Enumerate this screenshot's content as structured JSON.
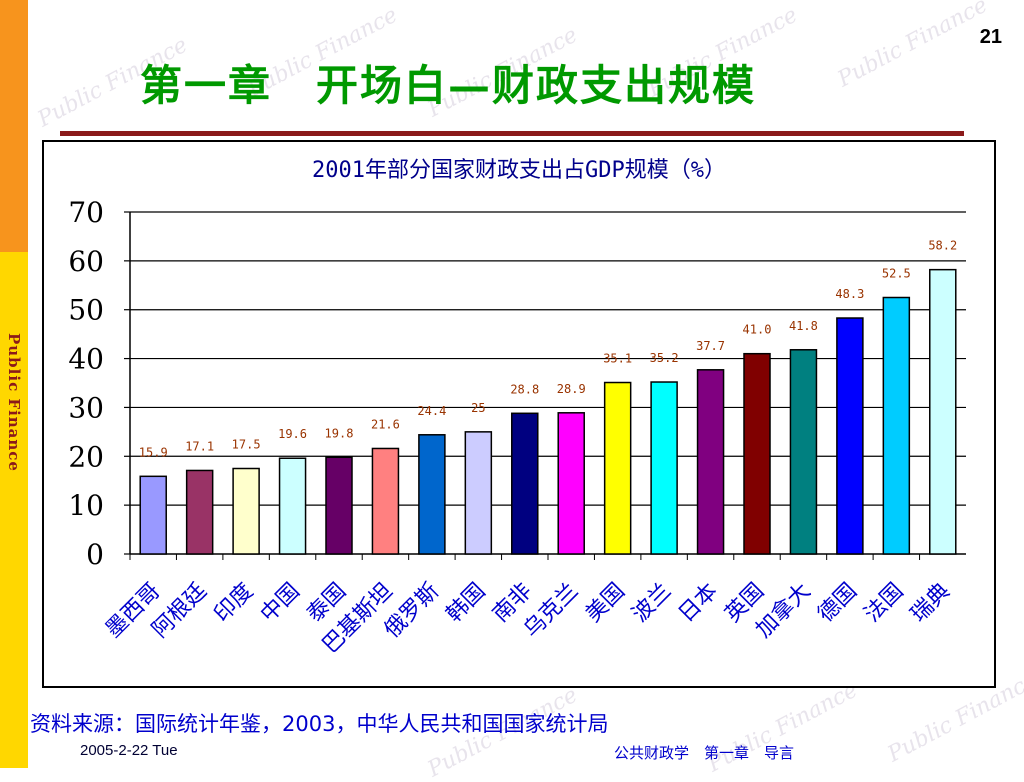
{
  "page_number": "21",
  "slide_title": "第一章　开场白—财政支出规模",
  "side_label": "Public  Finance",
  "watermark_text": "Public Finance",
  "source_note": "资料来源：国际统计年鉴，2003，中华人民共和国国家统计局",
  "footer": {
    "date": "2005-2-22 Tue",
    "course": "公共财政学　第一章　导言"
  },
  "chart_data": {
    "type": "bar",
    "title": "2001年部分国家财政支出占GDP规模（%）",
    "xlabel": "",
    "ylabel": "",
    "ylim": [
      0,
      70
    ],
    "yticks": [
      0,
      10,
      20,
      30,
      40,
      50,
      60,
      70
    ],
    "grid": true,
    "legend": "none",
    "categories": [
      "墨西哥",
      "阿根廷",
      "印度",
      "中国",
      "泰国",
      "巴基斯坦",
      "俄罗斯",
      "韩国",
      "南非",
      "乌克兰",
      "美国",
      "波兰",
      "日本",
      "英国",
      "加拿大",
      "德国",
      "法国",
      "瑞典"
    ],
    "values": [
      15.9,
      17.1,
      17.5,
      19.6,
      19.8,
      21.6,
      24.4,
      25,
      28.8,
      28.9,
      35.1,
      35.2,
      37.7,
      41.0,
      41.8,
      48.3,
      52.5,
      58.2
    ],
    "value_labels": [
      "15.9",
      "17.1",
      "17.5",
      "19.6",
      "19.8",
      "21.6",
      "24.4",
      "25",
      "28.8",
      "28.9",
      "35.1",
      "35.2",
      "37.7",
      "41.0",
      "41.8",
      "48.3",
      "52.5",
      "58.2"
    ],
    "colors": [
      "#9999ff",
      "#993366",
      "#ffffcc",
      "#ccffff",
      "#660066",
      "#ff8080",
      "#0066cc",
      "#ccccff",
      "#000080",
      "#ff00ff",
      "#ffff00",
      "#00ffff",
      "#800080",
      "#800000",
      "#008080",
      "#0000ff",
      "#00ccff",
      "#ccffff"
    ],
    "category_label_color": "#0000cc",
    "value_label_color": "#993300"
  }
}
